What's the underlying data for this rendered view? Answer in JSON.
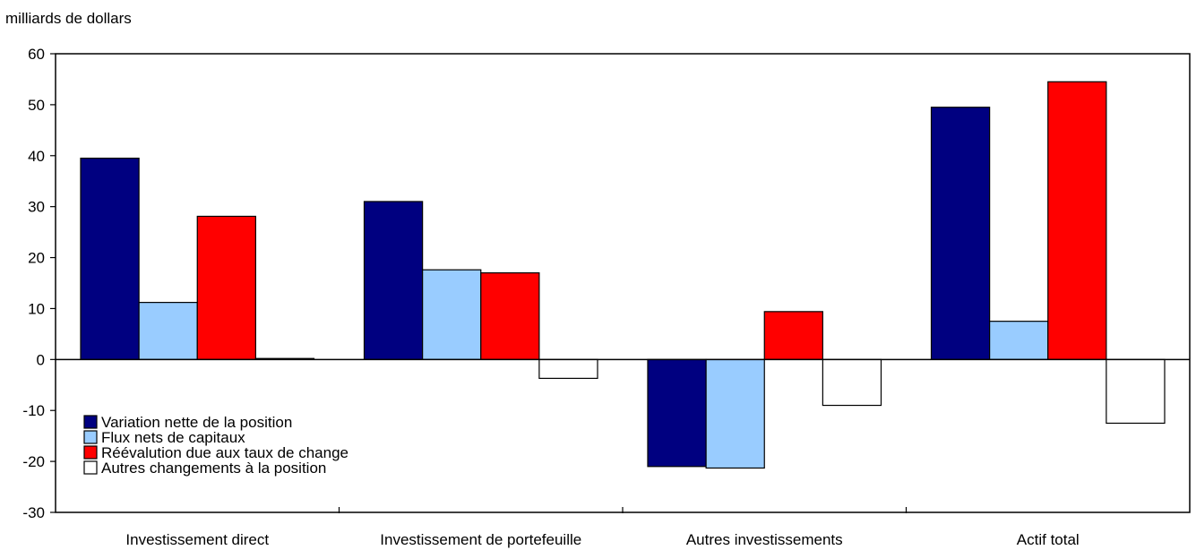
{
  "chart_data": {
    "type": "bar",
    "ylabel": "milliards de dollars",
    "xlabel": "",
    "categories": [
      "Investissement direct",
      "Investissement de portefeuille",
      "Autres investissements",
      "Actif total"
    ],
    "series": [
      {
        "name": "Variation nette de la position",
        "color": "#000080",
        "values": [
          39.5,
          31.0,
          -21.0,
          49.5
        ]
      },
      {
        "name": "Flux nets de capitaux",
        "color": "#99ccff",
        "values": [
          11.2,
          17.6,
          -21.3,
          7.5
        ]
      },
      {
        "name": "Réévalution due aux taux de change",
        "color": "#ff0000",
        "values": [
          28.1,
          17.0,
          9.4,
          54.5
        ]
      },
      {
        "name": "Autres changements à la position",
        "color": "#ffffff",
        "values": [
          0.2,
          -3.7,
          -9.0,
          -12.5
        ]
      }
    ],
    "ylim": [
      -30,
      60
    ],
    "yticks": [
      60,
      50,
      40,
      30,
      20,
      10,
      0,
      -10,
      -20,
      -30
    ],
    "grid": false,
    "legend_position": "bottom-left"
  }
}
